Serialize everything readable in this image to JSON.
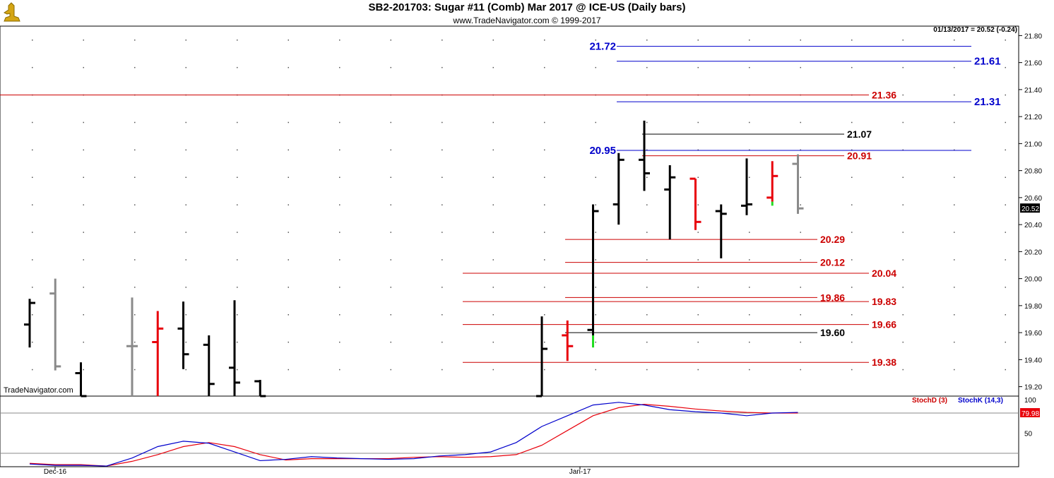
{
  "header": {
    "title": "SB2-201703:  Sugar #11 (Comb) Mar 2017 @ ICE-US  (Daily bars)",
    "subtitle": "www.TradeNavigator.com © 1999-2017",
    "last_price_line": "01/13/2017 = 20.52 (-0.24)",
    "watermark": "TradeNavigator.com"
  },
  "colors": {
    "up": "#000000",
    "down": "#e8000b",
    "neutral": "#8a8a8a",
    "blue_level": "#0000cc",
    "red_level": "#cc0000",
    "stochK": "#0000cc",
    "stochD": "#cc0000"
  },
  "chart_data": [
    {
      "type": "ohlc",
      "title": "SB2-201703:  Sugar #11 (Comb) Mar 2017 @ ICE-US  (Daily bars)",
      "ylim": [
        19.13,
        21.87
      ],
      "y_ticks": [
        "21.80",
        "21.60",
        "21.40",
        "21.20",
        "21.00",
        "20.80",
        "20.60",
        "20.40",
        "20.20",
        "20.00",
        "19.80",
        "19.60",
        "19.40",
        "19.20"
      ],
      "x_labels": [
        "Dec-16",
        "Jan-17"
      ],
      "last_value_label": "20.52",
      "bars": [
        {
          "i": 0,
          "o": 19.66,
          "h": 19.85,
          "l": 19.49,
          "c": 19.82,
          "color": "black"
        },
        {
          "i": 1,
          "o": 19.89,
          "h": 20.0,
          "l": 19.32,
          "c": 19.35,
          "color": "gray"
        },
        {
          "i": 2,
          "o": 19.3,
          "h": 19.38,
          "l": 19.13,
          "c": 19.13,
          "color": "black"
        },
        {
          "i": 4,
          "o": 19.5,
          "h": 19.86,
          "l": 19.13,
          "c": 19.5,
          "color": "gray"
        },
        {
          "i": 5,
          "o": 19.53,
          "h": 19.76,
          "l": 19.13,
          "c": 19.63,
          "color": "red"
        },
        {
          "i": 6,
          "o": 19.63,
          "h": 19.83,
          "l": 19.33,
          "c": 19.44,
          "color": "black"
        },
        {
          "i": 7,
          "o": 19.51,
          "h": 19.58,
          "l": 19.13,
          "c": 19.22,
          "color": "black"
        },
        {
          "i": 8,
          "o": 19.34,
          "h": 19.84,
          "l": 19.13,
          "c": 19.23,
          "color": "black"
        },
        {
          "i": 9,
          "o": 19.24,
          "h": 19.25,
          "l": 19.13,
          "c": 19.13,
          "color": "black"
        },
        {
          "i": 20,
          "o": 19.13,
          "h": 19.72,
          "l": 19.13,
          "c": 19.48,
          "color": "black"
        },
        {
          "i": 21,
          "o": 19.58,
          "h": 19.69,
          "l": 19.39,
          "c": 19.5,
          "color": "red"
        },
        {
          "i": 22,
          "o": 19.62,
          "h": 20.55,
          "l": 19.58,
          "c": 20.5,
          "color": "black"
        },
        {
          "i": 23,
          "o": 20.55,
          "h": 20.93,
          "l": 20.4,
          "c": 20.88,
          "color": "black"
        },
        {
          "i": 24,
          "o": 20.88,
          "h": 21.17,
          "l": 20.65,
          "c": 20.78,
          "color": "black"
        },
        {
          "i": 25,
          "o": 20.66,
          "h": 20.84,
          "l": 20.29,
          "c": 20.75,
          "color": "black"
        },
        {
          "i": 26,
          "o": 20.74,
          "h": 20.74,
          "l": 20.36,
          "c": 20.42,
          "color": "red"
        },
        {
          "i": 27,
          "o": 20.5,
          "h": 20.55,
          "l": 20.15,
          "c": 20.48,
          "color": "black"
        },
        {
          "i": 28,
          "o": 20.54,
          "h": 20.89,
          "l": 20.47,
          "c": 20.55,
          "color": "black"
        },
        {
          "i": 29,
          "o": 20.6,
          "h": 20.87,
          "l": 20.57,
          "c": 20.76,
          "color": "red"
        },
        {
          "i": 30,
          "o": 20.85,
          "h": 20.92,
          "l": 20.48,
          "c": 20.52,
          "color": "gray"
        }
      ],
      "levels": [
        {
          "value": 21.72,
          "label": "21.72",
          "color": "blue",
          "label_side": "left"
        },
        {
          "value": 21.61,
          "label": "21.61",
          "color": "blue",
          "label_side": "right"
        },
        {
          "value": 21.36,
          "label": "21.36",
          "color": "red",
          "label_side": "right"
        },
        {
          "value": 21.31,
          "label": "21.31",
          "color": "blue",
          "label_side": "right"
        },
        {
          "value": 21.07,
          "label": "21.07",
          "color": "black",
          "label_side": "right"
        },
        {
          "value": 20.95,
          "label": "20.95",
          "color": "blue",
          "label_side": "left"
        },
        {
          "value": 20.91,
          "label": "20.91",
          "color": "red",
          "label_side": "right"
        },
        {
          "value": 20.29,
          "label": "20.29",
          "color": "red",
          "label_side": "right"
        },
        {
          "value": 20.12,
          "label": "20.12",
          "color": "red",
          "label_side": "right"
        },
        {
          "value": 20.04,
          "label": "20.04",
          "color": "red",
          "label_side": "right"
        },
        {
          "value": 19.86,
          "label": "19.86",
          "color": "red",
          "label_side": "right"
        },
        {
          "value": 19.83,
          "label": "19.83",
          "color": "red",
          "label_side": "right"
        },
        {
          "value": 19.66,
          "label": "19.66",
          "color": "red",
          "label_side": "right"
        },
        {
          "value": 19.6,
          "label": "19.60",
          "color": "black",
          "label_side": "right"
        },
        {
          "value": 19.38,
          "label": "19.38",
          "color": "red",
          "label_side": "right"
        }
      ]
    },
    {
      "type": "line",
      "ylim": [
        0,
        100
      ],
      "y_ticks": [
        "100",
        "50"
      ],
      "last_value_label": "79.98",
      "series": [
        {
          "name": "StochD (3)",
          "color": "red",
          "values": [
            5,
            3,
            3,
            1,
            8,
            18,
            30,
            36,
            30,
            18,
            10,
            12,
            12,
            12,
            12,
            14,
            15,
            14,
            15,
            18,
            32,
            54,
            76,
            88,
            93,
            90,
            86,
            83,
            81,
            80,
            80
          ]
        },
        {
          "name": "StochK (14,3)",
          "color": "blue",
          "values": [
            4,
            2,
            2,
            1,
            13,
            30,
            38,
            35,
            22,
            9,
            11,
            15,
            13,
            12,
            11,
            12,
            16,
            18,
            22,
            36,
            60,
            76,
            92,
            96,
            92,
            85,
            82,
            80,
            76,
            80,
            81
          ]
        }
      ]
    }
  ]
}
